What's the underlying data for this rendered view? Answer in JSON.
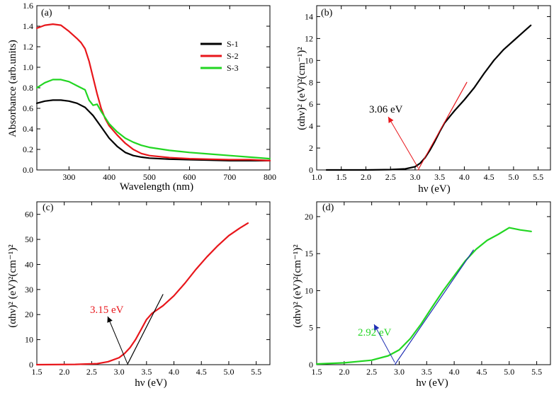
{
  "chart_data": [
    {
      "panel": "(a)",
      "type": "line",
      "xlabel": "Wavelength (nm)",
      "ylabel": "Absorbance (arb.units)",
      "xlim": [
        220,
        800
      ],
      "ylim": [
        0,
        1.6
      ],
      "xticks": [
        300,
        400,
        500,
        600,
        700,
        800
      ],
      "yticks": [
        0.0,
        0.2,
        0.4,
        0.6,
        0.8,
        1.0,
        1.2,
        1.4,
        1.6
      ],
      "xtick_labels": [
        "300",
        "400",
        "500",
        "600",
        "700",
        "800"
      ],
      "ytick_labels": [
        "0.0",
        "0.2",
        "0.4",
        "0.6",
        "0.8",
        "1.0",
        "1.2",
        "1.4",
        "1.6"
      ],
      "legend_position": "top-right",
      "series": [
        {
          "name": "S-1",
          "color": "#000000",
          "x": [
            220,
            240,
            260,
            280,
            300,
            320,
            340,
            360,
            380,
            400,
            420,
            440,
            460,
            480,
            500,
            550,
            600,
            650,
            700,
            750,
            800
          ],
          "y": [
            0.65,
            0.67,
            0.68,
            0.68,
            0.67,
            0.65,
            0.61,
            0.53,
            0.42,
            0.31,
            0.23,
            0.17,
            0.14,
            0.125,
            0.115,
            0.105,
            0.1,
            0.095,
            0.09,
            0.09,
            0.09
          ]
        },
        {
          "name": "S-2",
          "color": "#e8161b",
          "x": [
            220,
            240,
            260,
            280,
            300,
            320,
            330,
            340,
            350,
            360,
            370,
            380,
            390,
            400,
            420,
            440,
            460,
            480,
            500,
            550,
            600,
            650,
            700,
            750,
            800
          ],
          "y": [
            1.38,
            1.41,
            1.42,
            1.41,
            1.35,
            1.28,
            1.24,
            1.18,
            1.06,
            0.9,
            0.74,
            0.6,
            0.5,
            0.43,
            0.34,
            0.26,
            0.2,
            0.16,
            0.14,
            0.12,
            0.11,
            0.105,
            0.1,
            0.1,
            0.09
          ]
        },
        {
          "name": "S-3",
          "color": "#22d622",
          "x": [
            220,
            240,
            260,
            280,
            300,
            320,
            340,
            350,
            360,
            370,
            380,
            400,
            420,
            440,
            460,
            480,
            500,
            550,
            600,
            650,
            700,
            750,
            800
          ],
          "y": [
            0.8,
            0.85,
            0.88,
            0.88,
            0.86,
            0.82,
            0.78,
            0.68,
            0.63,
            0.64,
            0.57,
            0.45,
            0.37,
            0.31,
            0.27,
            0.24,
            0.22,
            0.19,
            0.17,
            0.155,
            0.14,
            0.125,
            0.11
          ]
        }
      ]
    },
    {
      "panel": "(b)",
      "type": "line",
      "xlabel": "hν (eV)",
      "ylabel": "(αhν)² (eV)²(cm⁻¹)²",
      "xlim": [
        1.0,
        5.75
      ],
      "ylim": [
        0,
        15
      ],
      "xticks": [
        1.0,
        1.5,
        2.0,
        2.5,
        3.0,
        3.5,
        4.0,
        4.5,
        5.0,
        5.5
      ],
      "yticks": [
        0,
        2,
        4,
        6,
        8,
        10,
        12,
        14
      ],
      "xtick_labels": [
        "1.0",
        "1.5",
        "2.0",
        "2.5",
        "3.0",
        "3.5",
        "4.0",
        "4.5",
        "5.0",
        "5.5"
      ],
      "ytick_labels": [
        "0",
        "2",
        "4",
        "6",
        "8",
        "10",
        "12",
        "14"
      ],
      "annotation": "3.06 eV",
      "band_gap_eV": 3.06,
      "series": [
        {
          "name": "data",
          "color": "#000000",
          "x": [
            1.2,
            2.0,
            2.5,
            2.8,
            3.0,
            3.1,
            3.2,
            3.3,
            3.4,
            3.5,
            3.6,
            3.8,
            4.0,
            4.2,
            4.4,
            4.6,
            4.8,
            5.0,
            5.2,
            5.35
          ],
          "y": [
            0.0,
            0.0,
            0.03,
            0.1,
            0.3,
            0.6,
            1.1,
            1.8,
            2.6,
            3.5,
            4.3,
            5.4,
            6.4,
            7.5,
            8.8,
            10.0,
            11.0,
            11.8,
            12.6,
            13.2
          ]
        },
        {
          "name": "fit",
          "color": "#e8161b",
          "x": [
            3.06,
            4.05
          ],
          "y": [
            0,
            8.0
          ]
        }
      ]
    },
    {
      "panel": "(c)",
      "type": "line",
      "xlabel": "hν (eV)",
      "ylabel": "(αhν)² (eV)²(cm⁻¹)²",
      "xlim": [
        1.5,
        5.75
      ],
      "ylim": [
        0,
        65
      ],
      "xticks": [
        1.5,
        2.0,
        2.5,
        3.0,
        3.5,
        4.0,
        4.5,
        5.0,
        5.5
      ],
      "yticks": [
        0,
        10,
        20,
        30,
        40,
        50,
        60
      ],
      "xtick_labels": [
        "1.5",
        "2.0",
        "2.5",
        "3.0",
        "3.5",
        "4.0",
        "4.5",
        "5.0",
        "5.5"
      ],
      "ytick_labels": [
        "0",
        "10",
        "20",
        "30",
        "40",
        "50",
        "60"
      ],
      "annotation": "3.15 eV",
      "band_gap_eV": 3.15,
      "series": [
        {
          "name": "data",
          "color": "#e8161b",
          "x": [
            1.5,
            2.2,
            2.6,
            2.8,
            3.0,
            3.1,
            3.2,
            3.3,
            3.4,
            3.5,
            3.6,
            3.8,
            4.0,
            4.2,
            4.4,
            4.6,
            4.8,
            5.0,
            5.2,
            5.35
          ],
          "y": [
            0.0,
            0.1,
            0.4,
            1.2,
            2.8,
            4.5,
            6.8,
            10.0,
            14.0,
            18.0,
            20.5,
            23.5,
            27.5,
            32.5,
            38.0,
            43.0,
            47.5,
            51.5,
            54.5,
            56.5
          ]
        },
        {
          "name": "fit",
          "color": "#000000",
          "x": [
            3.15,
            3.8
          ],
          "y": [
            0,
            28
          ]
        }
      ]
    },
    {
      "panel": "(d)",
      "type": "line",
      "xlabel": "hν (eV)",
      "ylabel": "(αhν)² (eV)²(cm⁻¹)²",
      "xlim": [
        1.5,
        5.75
      ],
      "ylim": [
        0,
        22
      ],
      "xticks": [
        1.5,
        2.0,
        2.5,
        3.0,
        3.5,
        4.0,
        4.5,
        5.0,
        5.5
      ],
      "yticks": [
        0,
        5,
        10,
        15,
        20
      ],
      "xtick_labels": [
        "1.5",
        "2.0",
        "2.5",
        "3.0",
        "3.5",
        "4.0",
        "4.5",
        "5.0",
        "5.5"
      ],
      "ytick_labels": [
        "0",
        "5",
        "10",
        "15",
        "20"
      ],
      "annotation": "2.92 eV",
      "band_gap_eV": 2.92,
      "series": [
        {
          "name": "data",
          "color": "#22d622",
          "x": [
            1.5,
            2.0,
            2.5,
            2.8,
            3.0,
            3.2,
            3.4,
            3.6,
            3.8,
            4.0,
            4.2,
            4.4,
            4.6,
            4.8,
            5.0,
            5.2,
            5.4
          ],
          "y": [
            0.1,
            0.25,
            0.6,
            1.2,
            2.0,
            3.5,
            5.5,
            7.8,
            10.0,
            12.0,
            14.0,
            15.6,
            16.8,
            17.6,
            18.5,
            18.2,
            18.0
          ]
        },
        {
          "name": "fit",
          "color": "#1f2fb3",
          "x": [
            2.92,
            4.35
          ],
          "y": [
            0,
            15.5
          ]
        }
      ]
    }
  ]
}
